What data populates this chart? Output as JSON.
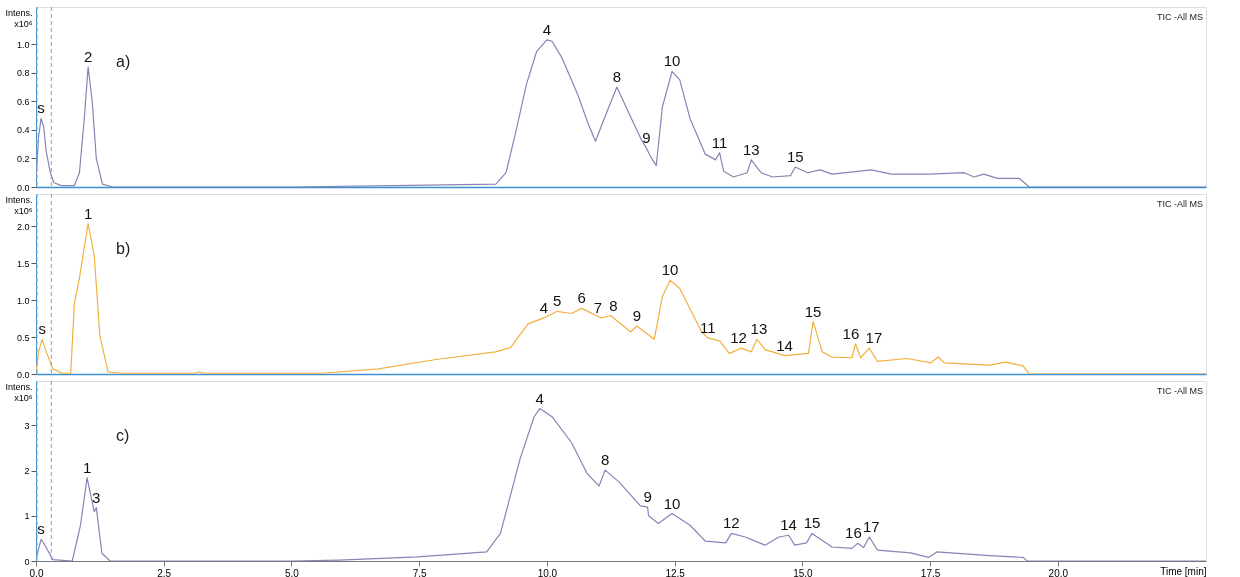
{
  "chart_data": [
    {
      "type": "line",
      "ylabel": "Intens. x10⁶",
      "xlim": [
        0,
        22.9
      ],
      "ylim": [
        0,
        1.26
      ],
      "yticks": [
        {
          "value": 0,
          "label": "0.0"
        },
        0.2,
        0.4,
        0.6,
        0.8,
        {
          "value": 1,
          "label": "1.0"
        }
      ],
      "tick_labels": "y",
      "grid": false,
      "line_style": "solid",
      "ref_lines": [
        {
          "axis": "x",
          "value": 0.02,
          "color": "#6aaad0",
          "line_style": "dashed"
        },
        {
          "axis": "x",
          "value": 0.3,
          "color": "#6aaad0",
          "line_style": "dashed"
        }
      ],
      "x": [
        0.0,
        0.05,
        0.1,
        0.15,
        0.2,
        0.28,
        0.35,
        0.5,
        0.75,
        0.85,
        0.95,
        1.02,
        1.1,
        1.18,
        1.3,
        1.5,
        5.0,
        7.0,
        9.0,
        9.2,
        9.4,
        9.6,
        9.8,
        10.0,
        10.1,
        10.3,
        10.6,
        10.8,
        10.95,
        11.2,
        11.37,
        11.6,
        11.85,
        11.95,
        12.05,
        12.14,
        12.26,
        12.45,
        12.6,
        12.8,
        13.1,
        13.3,
        13.38,
        13.46,
        13.65,
        13.92,
        14.0,
        14.19,
        14.42,
        14.77,
        14.86,
        15.1,
        15.35,
        15.58,
        16.35,
        16.74,
        17.5,
        18.17,
        18.36,
        18.55,
        18.82,
        19.25,
        19.44,
        22.9
      ],
      "series": [
        {
          "color": "#8585b5",
          "values": [
            0.05,
            0.35,
            0.48,
            0.42,
            0.25,
            0.1,
            0.03,
            0.01,
            0.01,
            0.1,
            0.5,
            0.84,
            0.6,
            0.2,
            0.02,
            0.0,
            0.0,
            0.01,
            0.02,
            0.1,
            0.4,
            0.72,
            0.95,
            1.03,
            1.02,
            0.9,
            0.65,
            0.45,
            0.32,
            0.55,
            0.7,
            0.52,
            0.33,
            0.27,
            0.2,
            0.15,
            0.56,
            0.81,
            0.75,
            0.48,
            0.23,
            0.19,
            0.24,
            0.11,
            0.07,
            0.1,
            0.19,
            0.1,
            0.07,
            0.08,
            0.14,
            0.1,
            0.12,
            0.09,
            0.12,
            0.09,
            0.09,
            0.1,
            0.07,
            0.09,
            0.06,
            0.06,
            0.0,
            0.0
          ]
        }
      ],
      "annotations": [
        "a)",
        "TIC -All MS",
        {
          "text": "s",
          "x": 0.1,
          "y": 0.48
        },
        {
          "text": "2",
          "x": 1.02,
          "y": 0.84
        },
        {
          "text": "4",
          "x": 10.0,
          "y": 1.03
        },
        {
          "text": "8",
          "x": 11.37,
          "y": 0.7
        },
        {
          "text": "9",
          "x": 11.95,
          "y": 0.27
        },
        {
          "text": "10",
          "x": 12.45,
          "y": 0.81
        },
        {
          "text": "11",
          "x": 13.38,
          "y": 0.24
        },
        {
          "text": "13",
          "x": 14.0,
          "y": 0.19
        },
        {
          "text": "15",
          "x": 14.86,
          "y": 0.14
        }
      ]
    },
    {
      "type": "line",
      "ylabel": "Intens. x10⁶",
      "xlim": [
        0,
        22.9
      ],
      "ylim": [
        0,
        2.44
      ],
      "yticks": [
        {
          "value": 0,
          "label": "0.0"
        },
        0.5,
        {
          "value": 1,
          "label": "1.0"
        },
        1.5,
        {
          "value": 2,
          "label": "2.0"
        }
      ],
      "tick_labels": "y",
      "grid": false,
      "line_style": "solid",
      "ref_lines": [
        {
          "axis": "x",
          "value": 0.02,
          "color": "#6aaad0",
          "line_style": "dashed"
        },
        {
          "axis": "x",
          "value": 0.3,
          "color": "#6aaad0",
          "line_style": "dashed"
        }
      ],
      "x": [
        0.0,
        0.05,
        0.12,
        0.2,
        0.33,
        0.52,
        0.68,
        0.75,
        0.85,
        1.02,
        1.14,
        1.25,
        1.41,
        1.68,
        3.1,
        3.19,
        3.3,
        5.6,
        6.7,
        7.86,
        9.0,
        9.29,
        9.63,
        9.94,
        10.2,
        10.48,
        10.68,
        11.06,
        11.25,
        11.64,
        11.76,
        12.1,
        12.26,
        12.41,
        12.6,
        13.03,
        13.15,
        13.38,
        13.57,
        13.8,
        14.0,
        14.11,
        14.27,
        14.65,
        15.12,
        15.21,
        15.39,
        15.58,
        15.97,
        16.04,
        16.14,
        16.31,
        16.47,
        17.05,
        17.51,
        17.66,
        17.78,
        18.67,
        18.98,
        19.32,
        19.44,
        22.9
      ],
      "series": [
        {
          "color": "#f0b040",
          "values": [
            0.02,
            0.3,
            0.47,
            0.3,
            0.07,
            0.01,
            0.01,
            0.95,
            1.3,
            2.04,
            1.6,
            0.52,
            0.03,
            0.01,
            0.01,
            0.03,
            0.01,
            0.01,
            0.07,
            0.2,
            0.3,
            0.36,
            0.68,
            0.76,
            0.85,
            0.82,
            0.89,
            0.76,
            0.79,
            0.57,
            0.65,
            0.47,
            1.05,
            1.27,
            1.16,
            0.57,
            0.49,
            0.45,
            0.28,
            0.35,
            0.3,
            0.47,
            0.33,
            0.25,
            0.28,
            0.71,
            0.3,
            0.23,
            0.22,
            0.41,
            0.22,
            0.35,
            0.17,
            0.21,
            0.15,
            0.23,
            0.15,
            0.12,
            0.16,
            0.11,
            0.0,
            0.0
          ]
        }
      ],
      "annotations": [
        "b)",
        "TIC -All MS",
        {
          "text": "s",
          "x": 0.12,
          "y": 0.47
        },
        {
          "text": "1",
          "x": 1.02,
          "y": 2.04
        },
        {
          "text": "4",
          "x": 9.94,
          "y": 0.76
        },
        {
          "text": "5",
          "x": 10.2,
          "y": 0.85
        },
        {
          "text": "6",
          "x": 10.68,
          "y": 0.89
        },
        {
          "text": "7",
          "x": 11.0,
          "y": 0.76
        },
        {
          "text": "8",
          "x": 11.3,
          "y": 0.79
        },
        {
          "text": "9",
          "x": 11.76,
          "y": 0.65
        },
        {
          "text": "10",
          "x": 12.41,
          "y": 1.27
        },
        {
          "text": "11",
          "x": 13.15,
          "y": 0.49
        },
        {
          "text": "12",
          "x": 13.75,
          "y": 0.35
        },
        {
          "text": "13",
          "x": 14.15,
          "y": 0.47
        },
        {
          "text": "14",
          "x": 14.65,
          "y": 0.25
        },
        {
          "text": "15",
          "x": 15.21,
          "y": 0.71
        },
        {
          "text": "16",
          "x": 15.95,
          "y": 0.41
        },
        {
          "text": "17",
          "x": 16.4,
          "y": 0.35
        }
      ]
    },
    {
      "type": "line",
      "ylabel": "Intens. x10⁶",
      "xlabel": "Time [min]",
      "xlim": [
        0,
        22.9
      ],
      "ylim": [
        0,
        3.98
      ],
      "xticks": [
        {
          "value": 0,
          "label": "0.0"
        },
        2.5,
        {
          "value": 5,
          "label": "5.0"
        },
        7.5,
        {
          "value": 10,
          "label": "10.0"
        },
        12.5,
        {
          "value": 15,
          "label": "15.0"
        },
        17.5,
        {
          "value": 20,
          "label": "20.0"
        }
      ],
      "yticks": [
        0,
        1,
        2,
        3
      ],
      "grid": false,
      "line_style": "solid",
      "ref_lines": [
        {
          "axis": "x",
          "value": 0.02,
          "color": "#6aaad0",
          "line_style": "dashed"
        },
        {
          "axis": "x",
          "value": 0.3,
          "color": "#6aaad0",
          "line_style": "dashed"
        }
      ],
      "x": [
        0.0,
        0.1,
        0.2,
        0.33,
        0.71,
        0.87,
        1.0,
        1.14,
        1.18,
        1.29,
        1.45,
        5.0,
        5.93,
        7.47,
        8.82,
        9.09,
        9.48,
        9.75,
        9.86,
        10.1,
        10.48,
        10.79,
        11.02,
        11.14,
        11.41,
        11.83,
        11.97,
        11.99,
        12.18,
        12.45,
        12.8,
        13.1,
        13.5,
        13.61,
        13.88,
        14.27,
        14.54,
        14.73,
        14.85,
        15.08,
        15.19,
        15.58,
        15.97,
        16.08,
        16.2,
        16.31,
        16.47,
        17.12,
        17.47,
        17.63,
        18.67,
        19.32,
        19.4,
        22.9
      ],
      "series": [
        {
          "color": "#8585b5",
          "values": [
            0.05,
            0.48,
            0.3,
            0.03,
            0.0,
            0.79,
            1.84,
            1.09,
            1.18,
            0.17,
            0.0,
            0.0,
            0.02,
            0.09,
            0.2,
            0.61,
            2.28,
            3.19,
            3.37,
            3.19,
            2.62,
            1.93,
            1.66,
            2.01,
            1.75,
            1.22,
            1.19,
            1.0,
            0.83,
            1.05,
            0.79,
            0.44,
            0.4,
            0.61,
            0.53,
            0.35,
            0.53,
            0.57,
            0.35,
            0.4,
            0.61,
            0.31,
            0.28,
            0.39,
            0.3,
            0.53,
            0.24,
            0.18,
            0.08,
            0.2,
            0.12,
            0.08,
            0.0,
            0.0
          ]
        }
      ],
      "annotations": [
        "c)",
        "TIC -All MS",
        {
          "text": "s",
          "x": 0.1,
          "y": 0.48
        },
        {
          "text": "1",
          "x": 1.0,
          "y": 1.84
        },
        {
          "text": "3",
          "x": 1.18,
          "y": 1.18
        },
        {
          "text": "4",
          "x": 9.86,
          "y": 3.37
        },
        {
          "text": "8",
          "x": 11.14,
          "y": 2.01
        },
        {
          "text": "9",
          "x": 11.97,
          "y": 1.19
        },
        {
          "text": "10",
          "x": 12.45,
          "y": 1.05
        },
        {
          "text": "12",
          "x": 13.61,
          "y": 0.61
        },
        {
          "text": "14",
          "x": 14.73,
          "y": 0.57
        },
        {
          "text": "15",
          "x": 15.19,
          "y": 0.61
        },
        {
          "text": "16",
          "x": 16.0,
          "y": 0.39
        },
        {
          "text": "17",
          "x": 16.35,
          "y": 0.53
        }
      ]
    }
  ]
}
